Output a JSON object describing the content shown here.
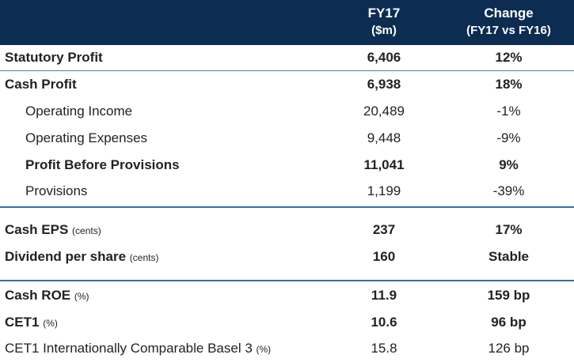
{
  "header": {
    "col1_title": "FY17",
    "col1_sub": "($m)",
    "col2_title": "Change",
    "col2_sub": "(FY17 vs FY16)"
  },
  "rows": [
    {
      "label": "Statutory Profit",
      "unit": "",
      "fy17": "6,406",
      "change": "12%"
    },
    {
      "label": "Cash Profit",
      "unit": "",
      "fy17": "6,938",
      "change": "18%"
    },
    {
      "label": "Operating Income",
      "unit": "",
      "fy17": "20,489",
      "change": "-1%"
    },
    {
      "label": "Operating Expenses",
      "unit": "",
      "fy17": "9,448",
      "change": "-9%"
    },
    {
      "label": "Profit Before Provisions",
      "unit": "",
      "fy17": "11,041",
      "change": "9%"
    },
    {
      "label": "Provisions",
      "unit": "",
      "fy17": "1,199",
      "change": "-39%"
    },
    {
      "label": "Cash EPS",
      "unit": "(cents)",
      "fy17": "237",
      "change": "17%"
    },
    {
      "label": "Dividend per share",
      "unit": "(cents)",
      "fy17": "160",
      "change": "Stable"
    },
    {
      "label": "Cash ROE",
      "unit": "(%)",
      "fy17": "11.9",
      "change": "159 bp"
    },
    {
      "label": "CET1",
      "unit": "(%)",
      "fy17": "10.6",
      "change": "96 bp"
    },
    {
      "label": "CET1 Internationally Comparable Basel 3",
      "unit": "(%)",
      "fy17": "15.8",
      "change": "126 bp"
    }
  ]
}
